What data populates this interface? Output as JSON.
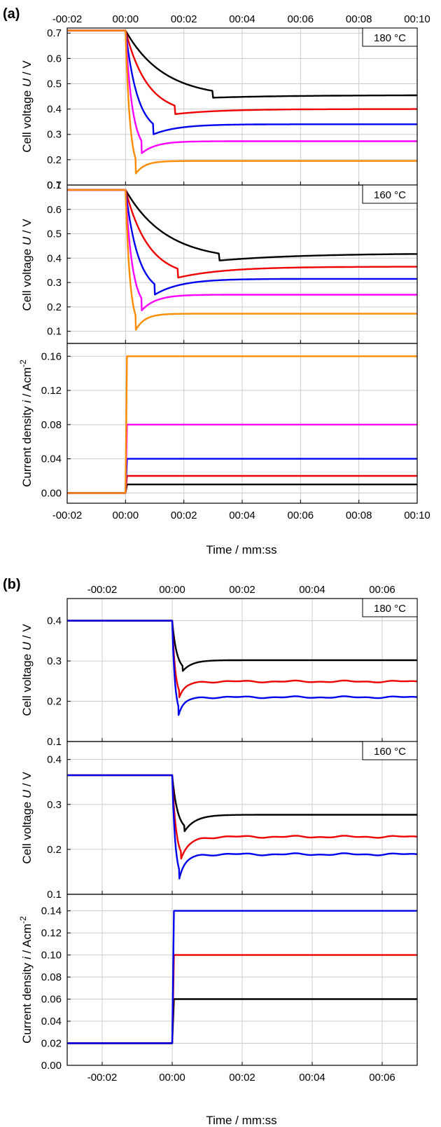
{
  "figure": {
    "panel_a_label": "(a)",
    "panel_b_label": "(b)",
    "xlabel": "Time / mm:ss"
  },
  "colors": {
    "black": "#000000",
    "red": "#ee0000",
    "blue": "#0000ee",
    "magenta": "#ff00ff",
    "orange": "#ff8c00",
    "grid": "#cccccc"
  },
  "chart_data": [
    {
      "type": "line",
      "panel": "(a)",
      "subplot": "voltage",
      "annotation": "180 °C",
      "ylabel": "Cell voltage U / V",
      "xlim_seconds": [
        -2,
        10
      ],
      "x_ticks": [
        "-00:02",
        "00:00",
        "00:02",
        "00:04",
        "00:06",
        "00:08",
        "00:10"
      ],
      "x_tick_labels_position": "top",
      "ylim": [
        0.1,
        0.72
      ],
      "y_ticks": [
        "0.1",
        "0.2",
        "0.3",
        "0.4",
        "0.5",
        "0.6",
        "0.7"
      ],
      "grid": true,
      "series": [
        {
          "color": "#000000",
          "initial": 0.71,
          "dip_time_s": 3.0,
          "dip_value": 0.445,
          "steady": 0.455,
          "bumpy": false
        },
        {
          "color": "#ee0000",
          "initial": 0.71,
          "dip_time_s": 1.7,
          "dip_value": 0.38,
          "steady": 0.4,
          "bumpy": false
        },
        {
          "color": "#0000ee",
          "initial": 0.71,
          "dip_time_s": 0.95,
          "dip_value": 0.3,
          "steady": 0.34,
          "bumpy": false
        },
        {
          "color": "#ff00ff",
          "initial": 0.71,
          "dip_time_s": 0.55,
          "dip_value": 0.225,
          "steady": 0.273,
          "bumpy": false
        },
        {
          "color": "#ff8c00",
          "initial": 0.71,
          "dip_time_s": 0.35,
          "dip_value": 0.145,
          "steady": 0.195,
          "bumpy": false
        }
      ]
    },
    {
      "type": "line",
      "panel": "(a)",
      "subplot": "voltage",
      "annotation": "160 °C",
      "ylabel": "Cell voltage U / V",
      "xlim_seconds": [
        -2,
        10
      ],
      "x_ticks": [
        "-00:02",
        "00:00",
        "00:02",
        "00:04",
        "00:06",
        "00:08",
        "00:10"
      ],
      "ylim": [
        0.05,
        0.7
      ],
      "y_ticks": [
        "0.1",
        "0.2",
        "0.3",
        "0.4",
        "0.5",
        "0.6",
        "0.7"
      ],
      "grid": true,
      "series": [
        {
          "color": "#000000",
          "initial": 0.68,
          "dip_time_s": 3.2,
          "dip_value": 0.39,
          "steady": 0.42,
          "bumpy": false
        },
        {
          "color": "#ee0000",
          "initial": 0.68,
          "dip_time_s": 1.8,
          "dip_value": 0.32,
          "steady": 0.365,
          "bumpy": false
        },
        {
          "color": "#0000ee",
          "initial": 0.68,
          "dip_time_s": 1.0,
          "dip_value": 0.25,
          "steady": 0.315,
          "bumpy": false
        },
        {
          "color": "#ff00ff",
          "initial": 0.68,
          "dip_time_s": 0.55,
          "dip_value": 0.185,
          "steady": 0.25,
          "bumpy": false
        },
        {
          "color": "#ff8c00",
          "initial": 0.68,
          "dip_time_s": 0.35,
          "dip_value": 0.105,
          "steady": 0.172,
          "bumpy": false
        }
      ]
    },
    {
      "type": "line",
      "panel": "(a)",
      "subplot": "current",
      "ylabel": "Current density i / Acm-2",
      "xlabel": "Time / mm:ss",
      "xlim_seconds": [
        -2,
        10
      ],
      "x_ticks": [
        "-00:02",
        "00:00",
        "00:02",
        "00:04",
        "00:06",
        "00:08",
        "00:10"
      ],
      "ylim": [
        -0.012,
        0.175
      ],
      "y_ticks": [
        "0.00",
        "0.04",
        "0.08",
        "0.12",
        "0.16"
      ],
      "grid": true,
      "series": [
        {
          "color": "#000000",
          "initial": 0.0,
          "step_time_s": 0.05,
          "final": 0.01
        },
        {
          "color": "#ee0000",
          "initial": 0.0,
          "step_time_s": 0.05,
          "final": 0.02
        },
        {
          "color": "#0000ee",
          "initial": 0.0,
          "step_time_s": 0.05,
          "final": 0.04
        },
        {
          "color": "#ff00ff",
          "initial": 0.0,
          "step_time_s": 0.05,
          "final": 0.08
        },
        {
          "color": "#ff8c00",
          "initial": 0.0,
          "step_time_s": 0.05,
          "final": 0.16
        }
      ]
    },
    {
      "type": "line",
      "panel": "(b)",
      "subplot": "voltage",
      "annotation": "180 °C",
      "ylabel": "Cell voltage U / V",
      "xlim_seconds": [
        -3,
        7
      ],
      "x_ticks": [
        "-00:02",
        "00:00",
        "00:02",
        "00:04",
        "00:06"
      ],
      "x_tick_labels_position": "top",
      "ylim": [
        0.1,
        0.455
      ],
      "y_ticks": [
        "0.1",
        "0.2",
        "0.3",
        "0.4"
      ],
      "grid": true,
      "series": [
        {
          "color": "#000000",
          "initial": 0.4,
          "dip_time_s": 0.3,
          "dip_value": 0.275,
          "steady": 0.302,
          "bumpy": false
        },
        {
          "color": "#ee0000",
          "initial": 0.4,
          "dip_time_s": 0.2,
          "dip_value": 0.207,
          "steady": 0.249,
          "bumpy": true
        },
        {
          "color": "#0000ee",
          "initial": 0.4,
          "dip_time_s": 0.18,
          "dip_value": 0.163,
          "steady": 0.21,
          "bumpy": true
        }
      ]
    },
    {
      "type": "line",
      "panel": "(b)",
      "subplot": "voltage",
      "annotation": "160 °C",
      "ylabel": "Cell voltage U / V",
      "xlim_seconds": [
        -3,
        7
      ],
      "x_ticks": [
        "-00:02",
        "00:00",
        "00:02",
        "00:04",
        "00:06"
      ],
      "ylim": [
        0.1,
        0.44
      ],
      "y_ticks": [
        "0.1",
        "0.2",
        "0.3",
        "0.4"
      ],
      "grid": true,
      "series": [
        {
          "color": "#000000",
          "initial": 0.365,
          "dip_time_s": 0.35,
          "dip_value": 0.24,
          "steady": 0.277,
          "bumpy": false
        },
        {
          "color": "#ee0000",
          "initial": 0.365,
          "dip_time_s": 0.25,
          "dip_value": 0.176,
          "steady": 0.228,
          "bumpy": true
        },
        {
          "color": "#0000ee",
          "initial": 0.365,
          "dip_time_s": 0.2,
          "dip_value": 0.132,
          "steady": 0.189,
          "bumpy": true
        }
      ]
    },
    {
      "type": "line",
      "panel": "(b)",
      "subplot": "current",
      "ylabel": "Current density i / Acm-2",
      "xlabel": "Time / mm:ss",
      "xlim_seconds": [
        -3,
        7
      ],
      "x_ticks": [
        "-00:02",
        "00:00",
        "00:02",
        "00:04",
        "00:06"
      ],
      "ylim": [
        0.0,
        0.155
      ],
      "y_ticks": [
        "0.00",
        "0.02",
        "0.04",
        "0.06",
        "0.08",
        "0.10",
        "0.12",
        "0.14"
      ],
      "grid": true,
      "series": [
        {
          "color": "#000000",
          "initial": 0.02,
          "step_time_s": 0.05,
          "final": 0.06
        },
        {
          "color": "#ee0000",
          "initial": 0.02,
          "step_time_s": 0.05,
          "final": 0.1
        },
        {
          "color": "#0000ee",
          "initial": 0.02,
          "step_time_s": 0.05,
          "final": 0.14
        }
      ]
    }
  ]
}
